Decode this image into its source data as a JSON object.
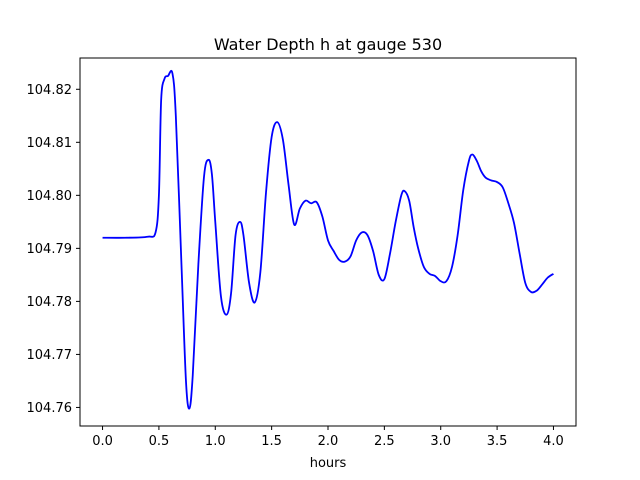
{
  "chart_data": {
    "type": "line",
    "title": "Water Depth h at gauge 530",
    "xlabel": "hours",
    "ylabel": "",
    "xlim": [
      -0.2,
      4.2
    ],
    "ylim": [
      104.7565,
      104.8259
    ],
    "xticks": [
      0.0,
      0.5,
      1.0,
      1.5,
      2.0,
      2.5,
      3.0,
      3.5,
      4.0
    ],
    "xtick_labels": [
      "0.0",
      "0.5",
      "1.0",
      "1.5",
      "2.0",
      "2.5",
      "3.0",
      "3.5",
      "4.0"
    ],
    "yticks": [
      104.76,
      104.77,
      104.78,
      104.79,
      104.8,
      104.81,
      104.82
    ],
    "ytick_labels": [
      "104.76",
      "104.77",
      "104.78",
      "104.79",
      "104.80",
      "104.81",
      "104.82"
    ],
    "grid": false,
    "series": [
      {
        "color": "#0000ff",
        "x": [
          0.0,
          0.2,
          0.4,
          0.47,
          0.5,
          0.52,
          0.55,
          0.58,
          0.62,
          0.65,
          0.7,
          0.74,
          0.77,
          0.8,
          0.85,
          0.9,
          0.94,
          0.97,
          1.0,
          1.05,
          1.1,
          1.14,
          1.18,
          1.22,
          1.25,
          1.3,
          1.35,
          1.4,
          1.45,
          1.5,
          1.55,
          1.6,
          1.65,
          1.7,
          1.75,
          1.8,
          1.85,
          1.9,
          1.95,
          2.0,
          2.05,
          2.1,
          2.15,
          2.2,
          2.25,
          2.3,
          2.35,
          2.4,
          2.45,
          2.5,
          2.55,
          2.6,
          2.65,
          2.68,
          2.72,
          2.76,
          2.8,
          2.85,
          2.9,
          2.95,
          3.0,
          3.05,
          3.1,
          3.15,
          3.2,
          3.25,
          3.28,
          3.32,
          3.36,
          3.4,
          3.45,
          3.5,
          3.55,
          3.6,
          3.65,
          3.7,
          3.75,
          3.8,
          3.85,
          3.9,
          3.95,
          4.0
        ],
        "y": [
          104.792,
          104.792,
          104.7922,
          104.793,
          104.8,
          104.818,
          104.822,
          104.8225,
          104.823,
          104.815,
          104.787,
          104.765,
          104.7598,
          104.766,
          104.787,
          104.8035,
          104.8067,
          104.804,
          104.795,
          104.781,
          104.7775,
          104.7815,
          104.7925,
          104.795,
          104.7925,
          104.7835,
          104.7798,
          104.7855,
          104.8005,
          104.811,
          104.8138,
          104.8105,
          104.802,
          104.7945,
          104.7975,
          104.799,
          104.7985,
          104.7987,
          104.796,
          104.7915,
          104.7895,
          104.7878,
          104.7875,
          104.7885,
          104.7915,
          104.793,
          104.7925,
          104.7895,
          104.785,
          104.7842,
          104.789,
          104.795,
          104.8,
          104.8008,
          104.799,
          104.794,
          104.79,
          104.7865,
          104.7852,
          104.7848,
          104.7838,
          104.7838,
          104.7865,
          104.7925,
          104.801,
          104.8065,
          104.8077,
          104.8065,
          104.8045,
          104.8033,
          104.8028,
          104.8025,
          104.8015,
          104.7985,
          104.7948,
          104.789,
          104.7835,
          104.7818,
          104.782,
          104.7832,
          104.7845,
          104.7852
        ]
      }
    ]
  }
}
